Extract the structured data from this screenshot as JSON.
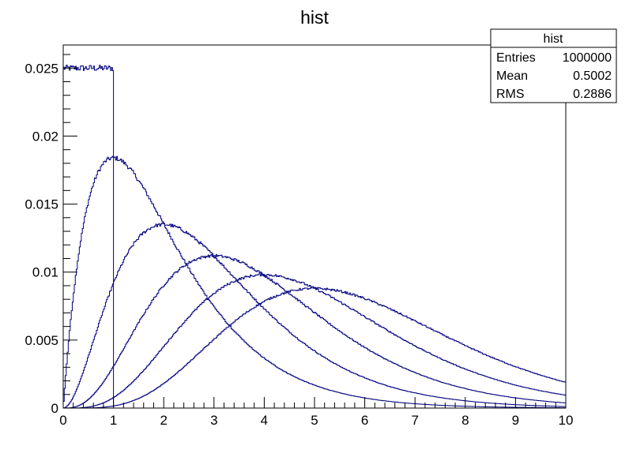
{
  "chart_data": {
    "type": "histogram",
    "title": "hist",
    "xlim": [
      0,
      10
    ],
    "ylim": [
      0,
      0.0267
    ],
    "x_ticks": [
      0,
      1,
      2,
      3,
      4,
      5,
      6,
      7,
      8,
      9,
      10
    ],
    "y_ticks": [
      0,
      0.005,
      0.01,
      0.015,
      0.02,
      0.025
    ],
    "x_tick_labels": [
      "0",
      "1",
      "2",
      "3",
      "4",
      "5",
      "6",
      "7",
      "8",
      "9",
      "10"
    ],
    "y_tick_labels": [
      "0",
      "0.005",
      "0.01",
      "0.015",
      "0.02",
      "0.025"
    ],
    "bin_width": 0.02,
    "line_color": "#000080",
    "grid": false,
    "legend": "none",
    "stats_box": {
      "title": "hist",
      "placement": "top-right",
      "rows": [
        {
          "label": "Entries",
          "value": "1000000"
        },
        {
          "label": "Mean",
          "value": "0.5002"
        },
        {
          "label": "RMS",
          "value": "0.2886"
        }
      ]
    },
    "series": [
      {
        "shape": "uniform",
        "range": [
          0,
          1
        ],
        "height": 0.025
      },
      {
        "shape": "gamma",
        "k": 2,
        "peak": 0.0184
      },
      {
        "shape": "gamma",
        "k": 3,
        "peak": 0.0135
      },
      {
        "shape": "gamma",
        "k": 4,
        "peak": 0.0112
      },
      {
        "shape": "gamma",
        "k": 5,
        "peak": 0.0098
      },
      {
        "shape": "gamma",
        "k": 6,
        "peak": 0.0088
      }
    ]
  }
}
